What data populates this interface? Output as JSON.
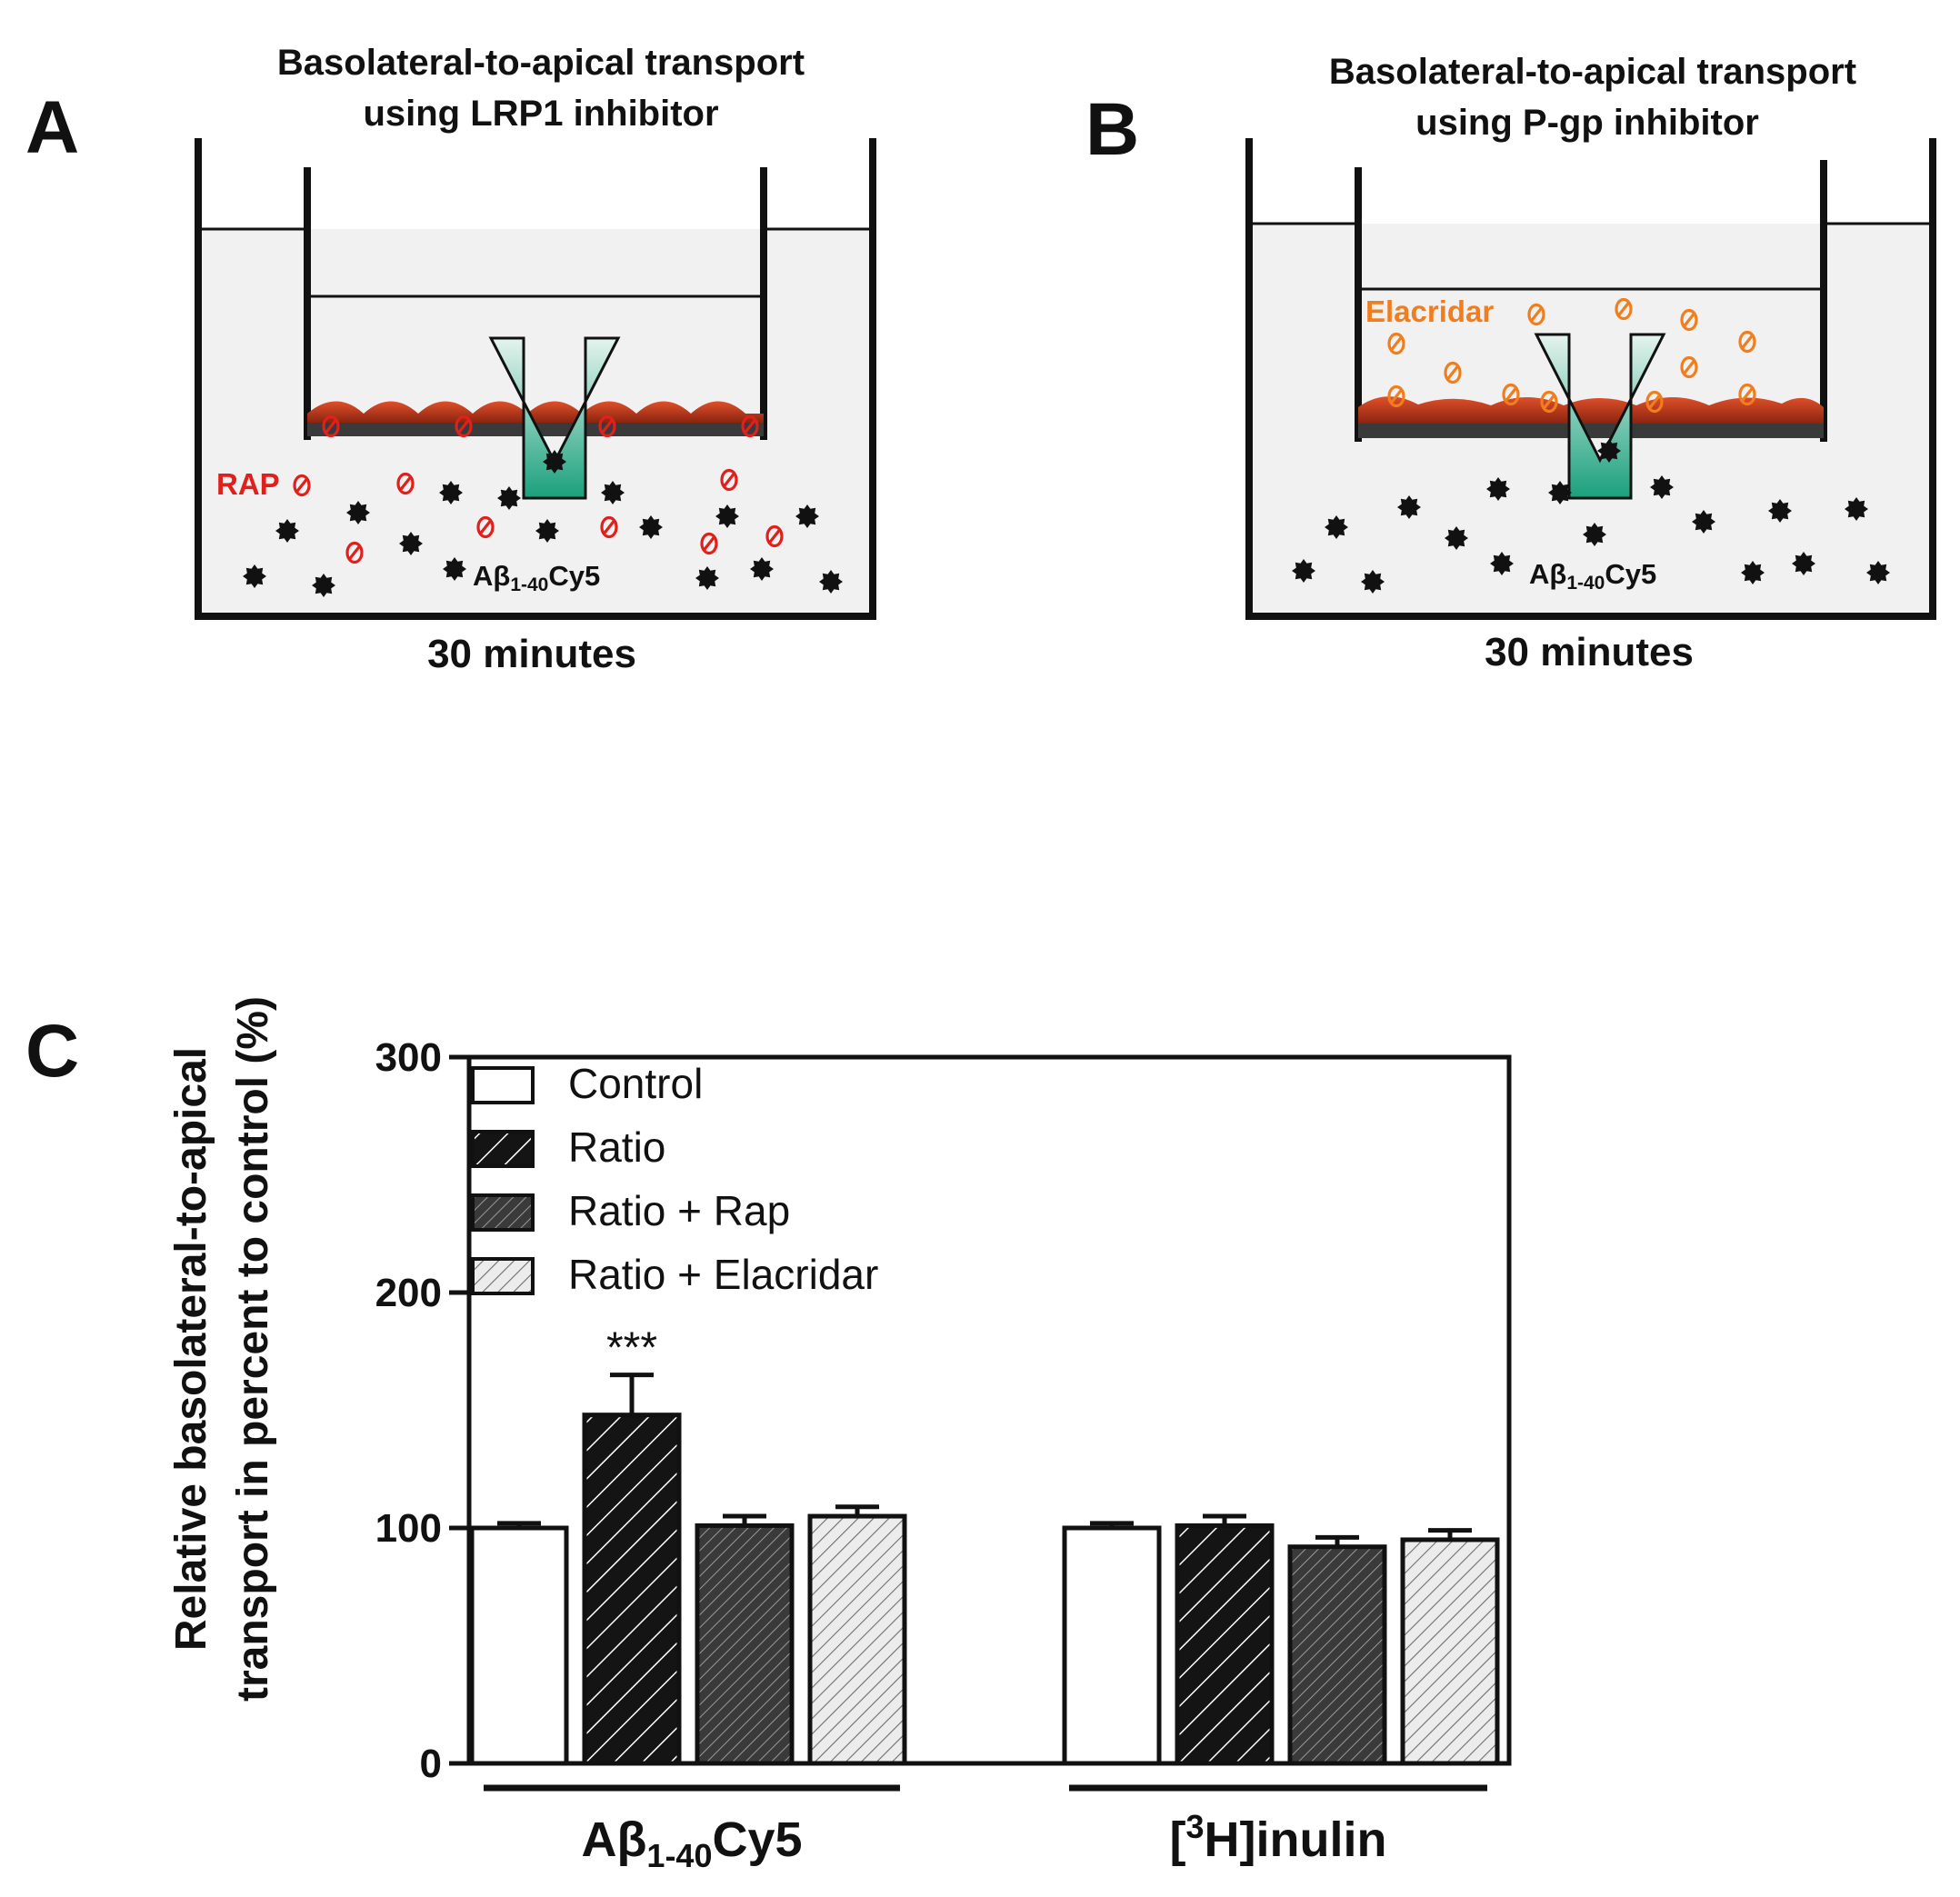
{
  "panel_a": {
    "letter": "A",
    "title_line1": "Basolateral-to-apical transport",
    "title_line2": "using LRP1 inhibitor",
    "inhibitor": "RAP",
    "peptide_main": "Aβ",
    "peptide_sub": "1-40",
    "peptide_suffix": "Cy5",
    "time": "30 minutes"
  },
  "panel_b": {
    "letter": "B",
    "title_line1": "Basolateral-to-apical transport",
    "title_line2": "using P-gp inhibitor",
    "inhibitor": "Elacridar",
    "peptide_main": "Aβ",
    "peptide_sub": "1-40",
    "peptide_suffix": "Cy5",
    "time": "30 minutes"
  },
  "colors": {
    "rap": "#e0201b",
    "elacridar": "#f07e1e",
    "cells": "#c8381a",
    "medium": "#f1f1f1",
    "arrow_top": "#1aa07c",
    "arrow_bottom": "#e4f4ee"
  },
  "chart_data": {
    "panel_letter": "C",
    "type": "bar",
    "ylabel_line1": "Relative basolateral-to-apical",
    "ylabel_line2": "transport in percent to control (%)",
    "ylim": [
      0,
      300
    ],
    "yticks": [
      0,
      100,
      200,
      300
    ],
    "groups": [
      {
        "main": "Aβ",
        "sub": "1-40",
        "suffix": "Cy5"
      },
      {
        "pre": "[",
        "sup": "3",
        "post": "H]inulin"
      }
    ],
    "series": [
      {
        "name": "Control",
        "pattern": "white",
        "values": [
          100,
          100
        ],
        "errors": [
          2,
          2
        ]
      },
      {
        "name": "Ratio",
        "pattern": "hatch-black",
        "values": [
          148,
          101
        ],
        "errors": [
          17,
          4
        ]
      },
      {
        "name": "Ratio + Rap",
        "pattern": "hatch-dark",
        "values": [
          101,
          92
        ],
        "errors": [
          4,
          4
        ]
      },
      {
        "name": "Ratio + Elacridar",
        "pattern": "hatch-light",
        "values": [
          105,
          95
        ],
        "errors": [
          4,
          4
        ]
      }
    ],
    "annotations": [
      {
        "text": "***",
        "group": 0,
        "series": 1
      }
    ]
  }
}
